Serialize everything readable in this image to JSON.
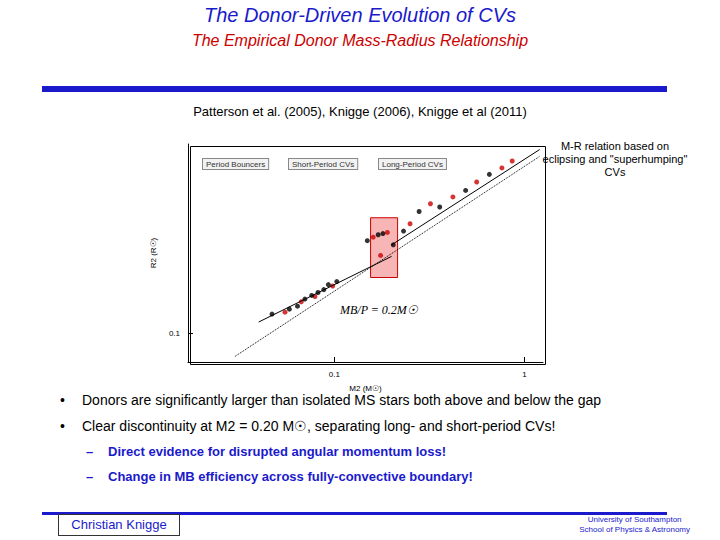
{
  "header": {
    "title": "The Donor-Driven Evolution of CVs",
    "subtitle": "The Empirical Donor Mass-Radius Relationship",
    "references": "Patterson et al. (2005),  Knigge (2006), Knigge et al (2011)"
  },
  "note": "M-R relation based on eclipsing and \"superhumping\" CVs",
  "bullets": [
    {
      "text": "Donors are significantly larger than isolated MS stars both above and below the gap",
      "sub": []
    },
    {
      "text": "Clear discontinuity at M2 = 0.20 M☉, separating long- and short-period CVs!",
      "sub": [
        "Direct evidence for disrupted angular momentum loss!",
        "Change in MB efficiency across fully-convective boundary!"
      ]
    }
  ],
  "footer": {
    "author": "Christian Knigge",
    "institution": [
      "University of Southampton",
      "School of Physics & Astronomy"
    ]
  },
  "chart_data": {
    "type": "scatter",
    "x_label": "M2 (M☉)",
    "y_label": "R2 (R☉)",
    "log": true,
    "grid": false,
    "xlim": [
      0.017,
      1.25
    ],
    "ylim": [
      0.07,
      1.05
    ],
    "xticks": [
      0.1,
      1
    ],
    "yticks": [
      0.1
    ],
    "annotations": [
      "Period Bouncers",
      "Short-Period CVs",
      "Long-Period CVs",
      "MB/P = 0.2M☉"
    ],
    "highlight_region": {
      "x": [
        0.155,
        0.215
      ],
      "y": [
        0.2,
        0.42
      ]
    },
    "series": [
      {
        "type": "scatter",
        "color": "#000000",
        "marker": "circle",
        "x": [
          0.047,
          0.058,
          0.064,
          0.07,
          0.076,
          0.082,
          0.088,
          0.093,
          0.103,
          0.149,
          0.17,
          0.18,
          0.204,
          0.231,
          0.279,
          0.358,
          0.49,
          0.653
        ],
        "y": [
          0.127,
          0.135,
          0.14,
          0.153,
          0.16,
          0.166,
          0.172,
          0.183,
          0.19,
          0.316,
          0.34,
          0.345,
          0.3,
          0.356,
          0.454,
          0.48,
          0.59,
          0.72
        ]
      },
      {
        "type": "scatter",
        "color": "#cc0000",
        "marker": "circle",
        "x": [
          0.055,
          0.067,
          0.079,
          0.098,
          0.16,
          0.175,
          0.19,
          0.25,
          0.32,
          0.42,
          0.56,
          0.76,
          0.861
        ],
        "y": [
          0.13,
          0.148,
          0.158,
          0.18,
          0.33,
          0.263,
          0.35,
          0.39,
          0.5,
          0.544,
          0.655,
          0.78,
          0.85
        ]
      },
      {
        "type": "line",
        "color": "#000000",
        "line_style": "solid",
        "x": [
          0.04,
          0.2
        ],
        "y": [
          0.115,
          0.26
        ]
      },
      {
        "type": "line",
        "color": "#000000",
        "line_style": "solid",
        "x": [
          0.2,
          1.2
        ],
        "y": [
          0.3,
          0.98
        ]
      },
      {
        "type": "line",
        "color": "#000000",
        "line_style": "dotted",
        "x": [
          0.03,
          1.2
        ],
        "y": [
          0.075,
          0.9
        ]
      }
    ]
  }
}
